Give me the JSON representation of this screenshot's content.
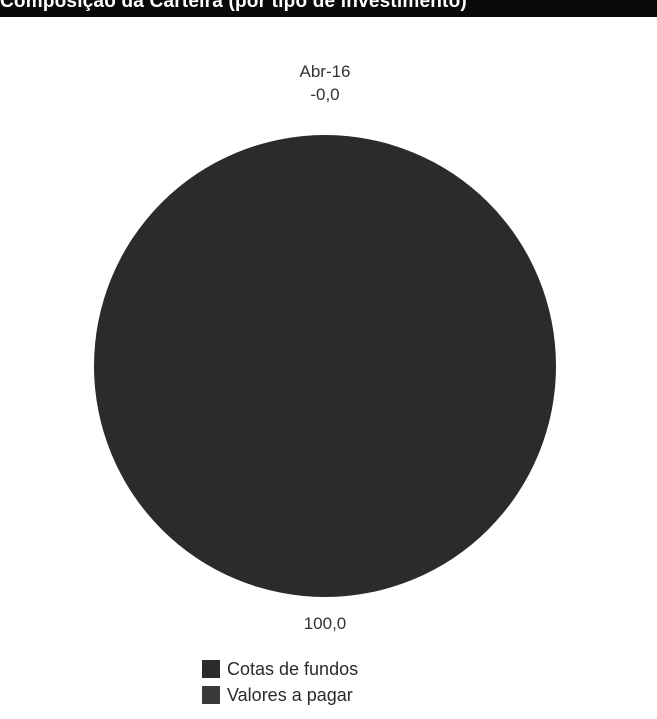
{
  "title": "Composição da Carteira (por tipo de investimento)",
  "chart_data": {
    "type": "pie",
    "title": "Composição da Carteira (por tipo de investimento)",
    "subtitle": "Abr-16",
    "categories": [
      "Cotas de fundos",
      "Valores a pagar"
    ],
    "values": [
      100.0,
      -0.0
    ],
    "data_labels": [
      "100,0",
      "-0,0"
    ],
    "colors": [
      "#2b2b2e",
      "#3a3a3c"
    ],
    "legend_position": "bottom"
  }
}
